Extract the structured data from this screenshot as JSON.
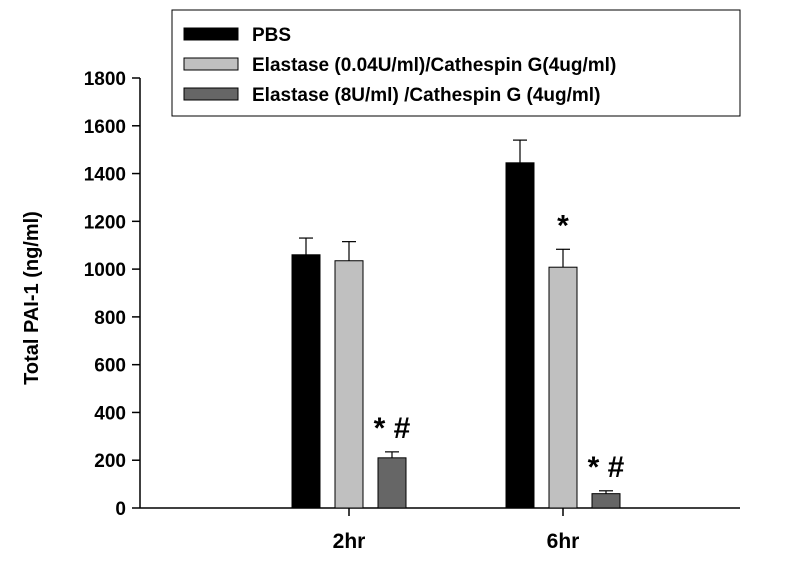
{
  "chart_data": {
    "type": "bar",
    "categories": [
      "2hr",
      "6hr"
    ],
    "series": [
      {
        "name": "PBS",
        "color": "#000000",
        "values": [
          1060,
          1445
        ],
        "errors": [
          70,
          95
        ]
      },
      {
        "name": "Elastase (0.04U/ml)/Cathespin G(4ug/ml)",
        "color": "#c0c0c0",
        "values": [
          1035,
          1008
        ],
        "errors": [
          80,
          75
        ]
      },
      {
        "name": "Elastase (8U/ml) /Cathespin G (4ug/ml)",
        "color": "#666666",
        "values": [
          210,
          60
        ],
        "errors": [
          25,
          12
        ]
      }
    ],
    "annotations": [
      {
        "category": 0,
        "series": 2,
        "text": "* #"
      },
      {
        "category": 1,
        "series": 1,
        "text": "*"
      },
      {
        "category": 1,
        "series": 2,
        "text": "* #"
      }
    ],
    "ylabel": "Total PAI-1 (ng/ml)",
    "xlabel": "",
    "ylim": [
      0,
      1800
    ],
    "yticks": [
      0,
      200,
      400,
      600,
      800,
      1000,
      1200,
      1400,
      1600,
      1800
    ],
    "grid": false,
    "legend_position": "top"
  }
}
